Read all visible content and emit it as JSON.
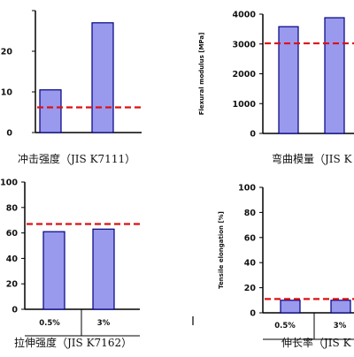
{
  "chart_data": [
    {
      "type": "bar",
      "title": "冲击强度（JIS K7111）",
      "ylabel": "",
      "ylim": [
        0,
        30
      ],
      "yticks": [
        0,
        10,
        20,
        30
      ],
      "ytick_labels": [
        "0",
        "10",
        "20",
        ""
      ],
      "categories": [
        "",
        ""
      ],
      "values": [
        10.5,
        27
      ],
      "reference": 6.2,
      "bar_color": "#9999ee",
      "bar_edge": "#000080",
      "ref_color": "#dd1111"
    },
    {
      "type": "bar",
      "title": "弯曲模量（JIS K",
      "ylabel": "Flexural modulus [MPa]",
      "ylim": [
        0,
        4000
      ],
      "yticks": [
        0,
        1000,
        2000,
        3000,
        4000
      ],
      "ytick_labels": [
        "0",
        "1000",
        "2000",
        "3000",
        "4000"
      ],
      "categories": [
        "",
        ""
      ],
      "values": [
        3580,
        3880
      ],
      "reference": 3020,
      "bar_color": "#9999ee",
      "bar_edge": "#000080",
      "ref_color": "#dd1111"
    },
    {
      "type": "bar",
      "title": "拉伸强度（JIS K7162）",
      "ylabel": "",
      "ylim": [
        0,
        100
      ],
      "yticks": [
        0,
        20,
        40,
        60,
        80,
        100
      ],
      "ytick_labels": [
        "0",
        "20",
        "40",
        "60",
        "80",
        "100"
      ],
      "categories": [
        "0.5%",
        "3%"
      ],
      "values": [
        61,
        63
      ],
      "reference": 67,
      "bar_color": "#9999ee",
      "bar_edge": "#000080",
      "ref_color": "#dd1111"
    },
    {
      "type": "bar",
      "title": "伸长率（JIS K",
      "ylabel": "Tensile elongation [%]",
      "ylim": [
        0,
        100
      ],
      "yticks": [
        0,
        20,
        40,
        60,
        80,
        100
      ],
      "ytick_labels": [
        "0",
        "20",
        "40",
        "60",
        "80",
        "100"
      ],
      "categories": [
        "0.5%",
        "3%"
      ],
      "values": [
        10,
        10
      ],
      "reference": 11,
      "bar_color": "#9999ee",
      "bar_edge": "#000080",
      "ref_color": "#dd1111"
    }
  ]
}
